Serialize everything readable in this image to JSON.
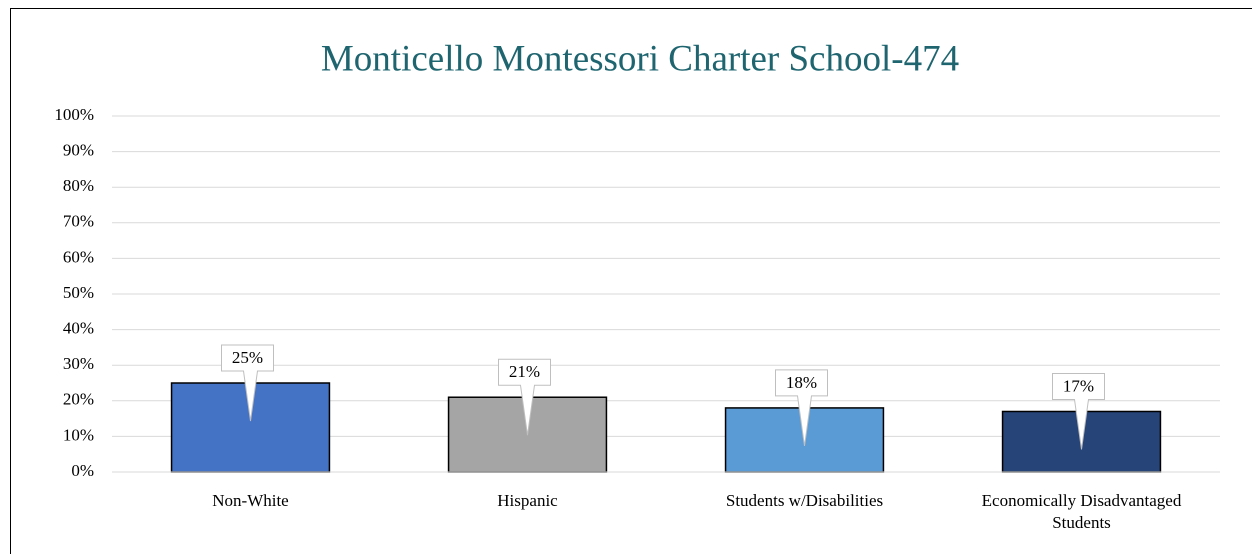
{
  "chart_data": {
    "type": "bar",
    "title": "Monticello Montessori Charter School-474",
    "categories": [
      "Non-White",
      "Hispanic",
      "Students w/Disabilities",
      "Economically Disadvantaged Students"
    ],
    "values": [
      25,
      21,
      18,
      17
    ],
    "value_labels": [
      "25%",
      "21%",
      "18%",
      "17%"
    ],
    "colors": [
      "#4472c4",
      "#a5a5a5",
      "#5b9bd5",
      "#264478"
    ],
    "ylim": [
      0,
      100
    ],
    "yticks": [
      {
        "value": 0,
        "label": "0%"
      },
      {
        "value": 10,
        "label": "10%"
      },
      {
        "value": 20,
        "label": "20%"
      },
      {
        "value": 30,
        "label": "30%"
      },
      {
        "value": 40,
        "label": "40%"
      },
      {
        "value": 50,
        "label": "50%"
      },
      {
        "value": 60,
        "label": "60%"
      },
      {
        "value": 70,
        "label": "70%"
      },
      {
        "value": 80,
        "label": "80%"
      },
      {
        "value": 90,
        "label": "90%"
      },
      {
        "value": 100,
        "label": "100%"
      }
    ],
    "grid": true
  }
}
